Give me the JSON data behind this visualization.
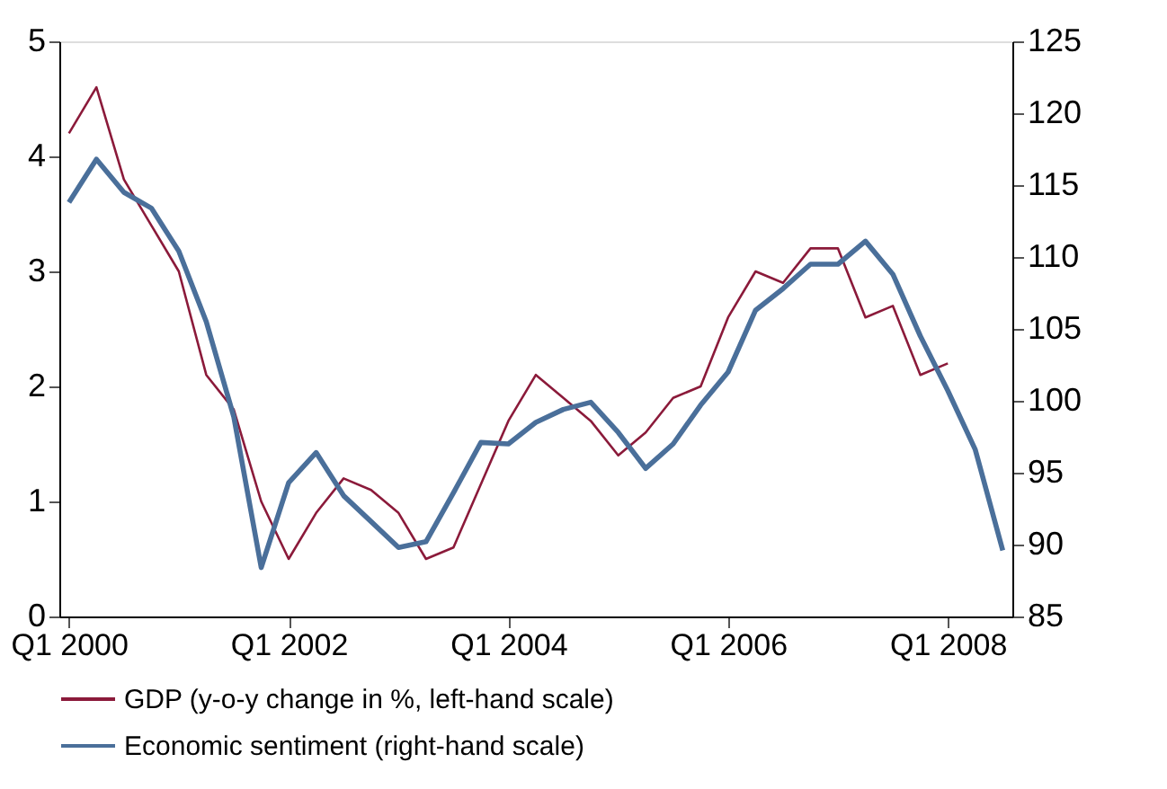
{
  "chart_data": {
    "type": "line",
    "categories": [
      "Q1 2000",
      null,
      null,
      null,
      null,
      null,
      null,
      null,
      "Q1 2002",
      null,
      null,
      null,
      null,
      null,
      null,
      null,
      "Q1 2004",
      null,
      null,
      null,
      null,
      null,
      null,
      null,
      "Q1 2006",
      null,
      null,
      null,
      null,
      null,
      null,
      null,
      "Q1 2008",
      null,
      null
    ],
    "ylim": [
      0,
      5
    ],
    "yticks": [
      0,
      1,
      2,
      3,
      4,
      5
    ],
    "y2lim": [
      85,
      125
    ],
    "y2ticks": [
      85,
      90,
      95,
      100,
      105,
      110,
      115,
      120,
      125
    ],
    "grid": false,
    "legend": "bottom",
    "marker": "none",
    "line_style": "solid",
    "series": [
      {
        "name": "GDP (y-o-y change in %, left-hand scale)",
        "color": "#8b1a3a",
        "axis": "y",
        "values": [
          4.2,
          4.6,
          3.8,
          3.4,
          3.0,
          2.1,
          1.8,
          1.0,
          0.5,
          0.9,
          1.2,
          1.1,
          0.9,
          0.5,
          0.6,
          1.15,
          1.7,
          2.1,
          1.9,
          1.7,
          1.4,
          1.6,
          1.9,
          2.0,
          2.6,
          3.0,
          2.9,
          3.2,
          3.2,
          2.6,
          2.7,
          2.1,
          2.2,
          null,
          null
        ]
      },
      {
        "name": "Economic sentiment (right-hand scale)",
        "color": "#4a6f9a",
        "axis": "y2",
        "values": [
          113.8,
          116.8,
          114.5,
          113.4,
          110.4,
          105.5,
          98.9,
          88.4,
          94.3,
          96.4,
          93.4,
          91.6,
          89.8,
          90.2,
          93.6,
          97.1,
          97.0,
          98.5,
          99.4,
          99.9,
          97.8,
          95.3,
          97.0,
          99.7,
          102.0,
          106.3,
          107.8,
          109.5,
          109.5,
          111.1,
          108.8,
          104.5,
          100.7,
          96.6,
          89.6
        ]
      }
    ]
  }
}
